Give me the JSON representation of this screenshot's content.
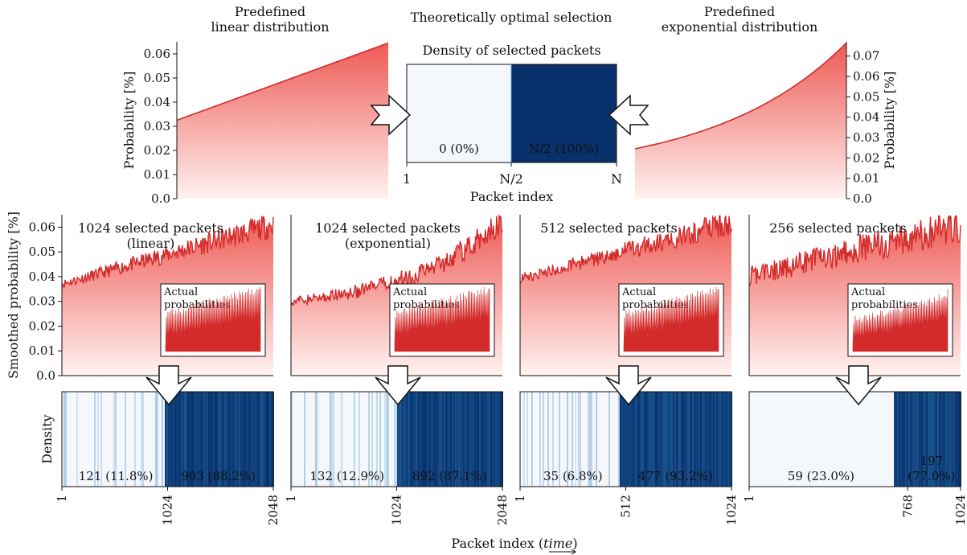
{
  "colors": {
    "curve": "#d32a2a",
    "fill_top": "#ee5a55",
    "dark_blue": "#08306b",
    "light_blue": "#f4f8fd"
  },
  "top_titles": {
    "left": [
      "Predefined",
      "linear distribution"
    ],
    "center": "Theoretically optimal selection",
    "right": [
      "Predefined",
      "exponential distribution"
    ]
  },
  "icons": {
    "arrow_side": "white-block-arrow",
    "arrow_down": "white-chevron-down-arrow"
  },
  "chart_data": [
    {
      "id": "top-linear",
      "type": "area",
      "ylabel": "Probability [%]",
      "ylim": [
        0,
        0.065
      ],
      "yticks": [
        "0.0",
        "0.01",
        "0.02",
        "0.03",
        "0.04",
        "0.05",
        "0.06"
      ],
      "x": [
        0,
        1
      ],
      "y_start": 0.0325,
      "y_end": 0.0645,
      "shape": "linear"
    },
    {
      "id": "center-optimal",
      "type": "heatmap",
      "title": "Density of selected packets",
      "xlabel": "Packet index",
      "xticks": [
        "1",
        "N/2",
        "N"
      ],
      "segments": [
        {
          "label": "0 (0%)",
          "share": 0.0
        },
        {
          "label": "N/2 (100%)",
          "share": 1.0
        }
      ]
    },
    {
      "id": "top-exponential",
      "type": "area",
      "ylabel": "Probability [%]",
      "ylim": [
        0,
        0.077
      ],
      "yticks": [
        "0.0",
        "0.01",
        "0.02",
        "0.03",
        "0.04",
        "0.05",
        "0.06",
        "0.07"
      ],
      "y_start": 0.0245,
      "y_end": 0.0765,
      "shape": "exponential"
    },
    {
      "id": "panel-1",
      "type": "line",
      "title": [
        "1024 selected packets",
        "(linear)"
      ],
      "ylabel": "Smoothed probability [%]",
      "ylim": [
        0,
        0.065
      ],
      "yticks": [
        "0.0",
        "0.01",
        "0.02",
        "0.03",
        "0.04",
        "0.05",
        "0.06"
      ],
      "trend_start": 0.037,
      "trend_end": 0.061,
      "shape": "linear",
      "inset_label": [
        "Actual",
        "probabilities"
      ],
      "density_ylabel": "Density",
      "density_split": 0.48,
      "density_labels": [
        "121 (11.8%)",
        "903 (88.2%)"
      ],
      "xticks": [
        "1",
        "1024",
        "2048"
      ]
    },
    {
      "id": "panel-2",
      "type": "line",
      "title": [
        "1024 selected packets",
        "(exponential)"
      ],
      "ylim": [
        0,
        0.065
      ],
      "trend_start": 0.03,
      "trend_end": 0.063,
      "shape": "exponential",
      "inset_label": [
        "Actual",
        "probabilities"
      ],
      "density_split": 0.5,
      "density_labels": [
        "132 (12.9%)",
        "892 (87.1%)"
      ],
      "xticks": [
        "1",
        "1024",
        "2048"
      ]
    },
    {
      "id": "panel-3",
      "type": "line",
      "title": [
        "512 selected packets"
      ],
      "ylim": [
        0,
        0.065
      ],
      "trend_start": 0.039,
      "trend_end": 0.062,
      "shape": "linear",
      "inset_label": [
        "Actual",
        "probabilities"
      ],
      "density_split": 0.47,
      "density_labels": [
        "35 (6.8%)",
        "477 (93.2%)"
      ],
      "xticks": [
        "1",
        "512",
        "1024"
      ]
    },
    {
      "id": "panel-4",
      "type": "line",
      "title": [
        "256 selected packets"
      ],
      "ylim": [
        0,
        0.065
      ],
      "trend_start": 0.04,
      "trend_end": 0.061,
      "shape": "linear",
      "inset_label": [
        "Actual",
        "probabilities"
      ],
      "density_split": 0.68,
      "density_labels": [
        "59 (23.0%)",
        "197",
        "(77.0%)"
      ],
      "xticks": [
        "1",
        "768",
        "1024"
      ]
    }
  ],
  "bottom_xlabel": {
    "prefix": "Packet index (",
    "time": "time",
    "suffix": ")"
  }
}
